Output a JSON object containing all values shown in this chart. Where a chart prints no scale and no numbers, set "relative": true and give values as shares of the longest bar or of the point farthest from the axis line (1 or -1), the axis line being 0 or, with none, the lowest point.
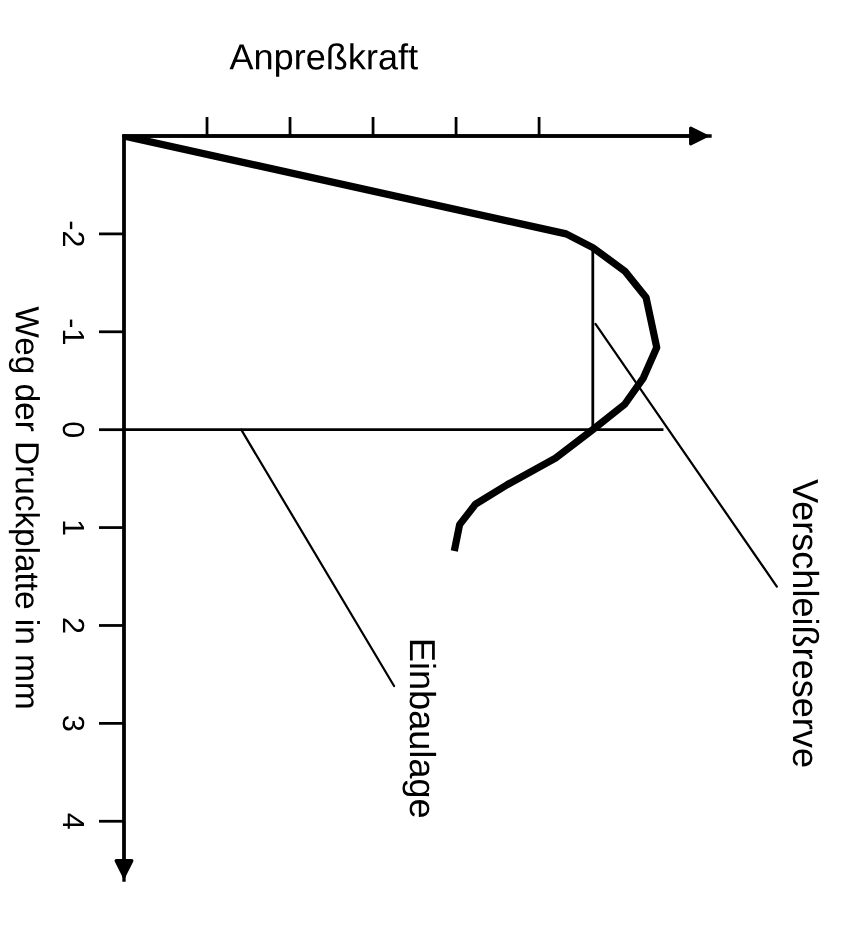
{
  "chart_data": {
    "type": "line",
    "orientation": "horizontal",
    "relative": true,
    "xlabel": "Anpreßkraft",
    "ylabel": "Weg der Druckplatte in mm",
    "ylim": [
      4.6,
      -3
    ],
    "yticks": [
      -2,
      -1,
      0,
      1,
      2,
      3,
      4
    ],
    "series": [
      {
        "x": [
          -3,
          -2.0,
          -1.86,
          -1.62,
          -1.35,
          -0.84,
          -0.53,
          -0.26,
          0,
          0.29,
          0.56,
          0.76,
          0.97,
          1.24
        ],
        "values": [
          0,
          0.83,
          0.88,
          0.94,
          0.98,
          1.0,
          0.975,
          0.94,
          0.88,
          0.81,
          0.72,
          0.66,
          0.63,
          0.62
        ],
        "color": "#000000"
      },
      {
        "x": [
          -1.86,
          0
        ],
        "values": [
          0.88,
          0.88
        ],
        "color": "#000000"
      }
    ],
    "ref_lines": [
      {
        "axis": "y",
        "value": 0,
        "color": "#000000"
      }
    ],
    "annotations": [
      {
        "text": "Einbaulage",
        "x": 0.22,
        "y": 0
      },
      {
        "text": "Verschleißreserve",
        "x": 0.885,
        "y": -1.08
      }
    ],
    "grid": false,
    "marker": "none",
    "line_style": "solid"
  }
}
